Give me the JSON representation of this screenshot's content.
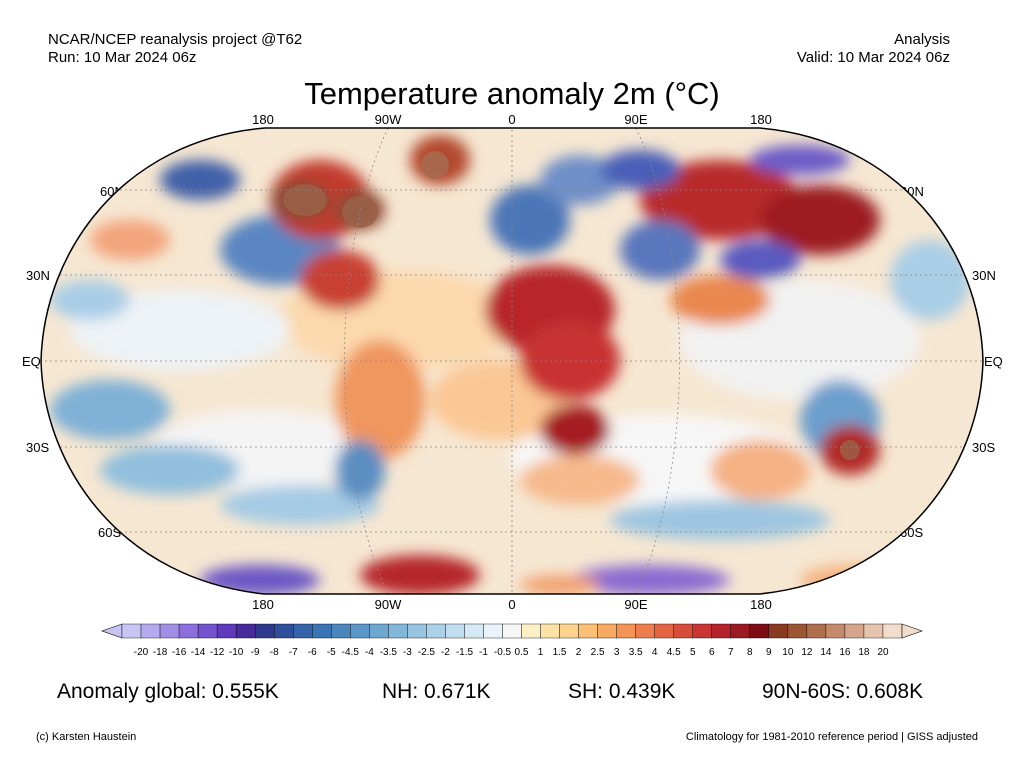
{
  "header": {
    "left_line1": "NCAR/NCEP reanalysis project @T62",
    "left_line2": "Run: 10 Mar 2024 06z",
    "right_line1": "Analysis",
    "right_line2": "Valid: 10 Mar 2024 06z"
  },
  "title": "Temperature anomaly 2m (°C)",
  "map": {
    "longitude_labels": [
      "180",
      "90W",
      "0",
      "90E",
      "180"
    ],
    "latitude_labels": [
      "60N",
      "30N",
      "EQ",
      "30S",
      "60S"
    ],
    "projection": "Robinson",
    "graticule": "dotted"
  },
  "colorbar": {
    "labels": [
      "-20",
      "-18",
      "-16",
      "-14",
      "-12",
      "-10",
      "-9",
      "-8",
      "-7",
      "-6",
      "-5",
      "-4.5",
      "-4",
      "-3.5",
      "-3",
      "-2.5",
      "-2",
      "-1.5",
      "-1",
      "-0.5",
      "0.5",
      "1",
      "1.5",
      "2",
      "2.5",
      "3",
      "3.5",
      "4",
      "4.5",
      "5",
      "6",
      "7",
      "8",
      "9",
      "10",
      "12",
      "14",
      "16",
      "18",
      "20"
    ],
    "colors": [
      "#c9c4f3",
      "#b6aaee",
      "#a28de6",
      "#8c6fdc",
      "#7552ce",
      "#5f38bb",
      "#472a9c",
      "#2f3a8c",
      "#2f4e9c",
      "#3563aa",
      "#3b74b4",
      "#4a86be",
      "#5b97c8",
      "#6da8d1",
      "#82b7d9",
      "#97c5e0",
      "#acd2e7",
      "#c0def0",
      "#d6eaf6",
      "#eaf3f9",
      "#f6f6f6",
      "#fdefc6",
      "#fde2a8",
      "#fcd28c",
      "#fbc076",
      "#f8aa62",
      "#f39356",
      "#ec7c4c",
      "#e36443",
      "#d74d3a",
      "#c93532",
      "#b4232b",
      "#9b1923",
      "#7d0c15",
      "#8b3a22",
      "#9d5634",
      "#b06f4e",
      "#c48a6b",
      "#d5a68d",
      "#e6c3ae",
      "#f2dccb"
    ]
  },
  "stats": {
    "global": "Anomaly global: 0.555K",
    "nh": "NH: 0.671K",
    "sh": "SH: 0.439K",
    "arctic": "90N-60S: 0.608K"
  },
  "footer": {
    "left": "(c) Karsten Haustein",
    "right": "Climatology for 1981-2010 reference period | GISS adjusted"
  }
}
